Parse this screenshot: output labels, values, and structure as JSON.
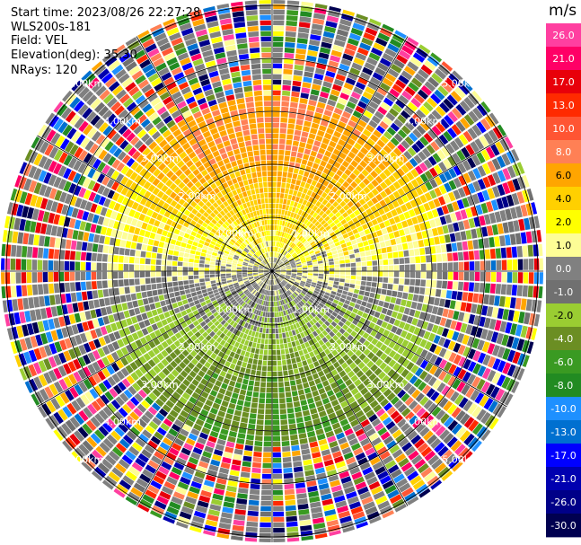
{
  "header": {
    "start_time": "Start time: 2023/08/26 22:27:28",
    "site": "WLS200s-181",
    "field": "Field: VEL",
    "elevation": "Elevation(deg): 35.30",
    "nrays": "NRays: 120"
  },
  "colorbar": {
    "unit": "m/s",
    "ticks": [
      "26.0",
      "21.0",
      "17.0",
      "13.0",
      "10.0",
      "8.0",
      "6.0",
      "4.0",
      "2.0",
      "1.0",
      "0.0",
      "-1.0",
      "-2.0",
      "-4.0",
      "-6.0",
      "-8.0",
      "-10.0",
      "-13.0",
      "-17.0",
      "-21.0",
      "-26.0",
      "-30.0"
    ],
    "colors": [
      "#ff3fa0",
      "#ff0066",
      "#e8000a",
      "#ff2a00",
      "#ff5533",
      "#ff8055",
      "#ffa500",
      "#ffd000",
      "#ffff00",
      "#fdfd96",
      "#808080",
      "#707070",
      "#9acd32",
      "#6b8e23",
      "#3a9a22",
      "#228b22",
      "#1e90ff",
      "#0070d0",
      "#0000ff",
      "#0000b0",
      "#000088",
      "#000050"
    ]
  },
  "chart_data": {
    "type": "ppi",
    "field": "VEL",
    "units": "m/s",
    "nrays": 120,
    "range_rings_km": [
      "1.00km",
      "2.00km",
      "3.00km",
      "4.00km",
      "5.00km"
    ],
    "velocity_range": [
      -30,
      26
    ],
    "description_regions": [
      {
        "sector": "north",
        "velocity": "2 to 8 m/s (approaching)"
      },
      {
        "sector": "south",
        "velocity": "-2 to -8 m/s (receding)"
      },
      {
        "sector": "east-west",
        "velocity": "about 0 m/s"
      },
      {
        "sector": "outer ring",
        "velocity": "noise across full range"
      }
    ]
  }
}
